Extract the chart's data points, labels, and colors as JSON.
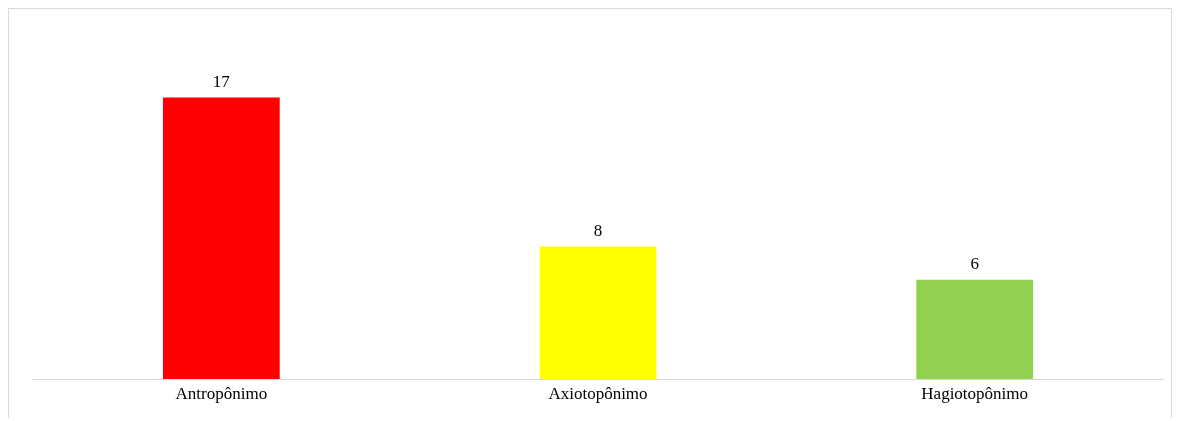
{
  "chart_data": {
    "type": "bar",
    "categories": [
      "Antropônimo",
      "Axiotopônimo",
      "Hagiotopônimo"
    ],
    "values": [
      17,
      8,
      6
    ],
    "colors": [
      "#ff0000",
      "#ffff00",
      "#92d050"
    ],
    "data_labels": true
  }
}
